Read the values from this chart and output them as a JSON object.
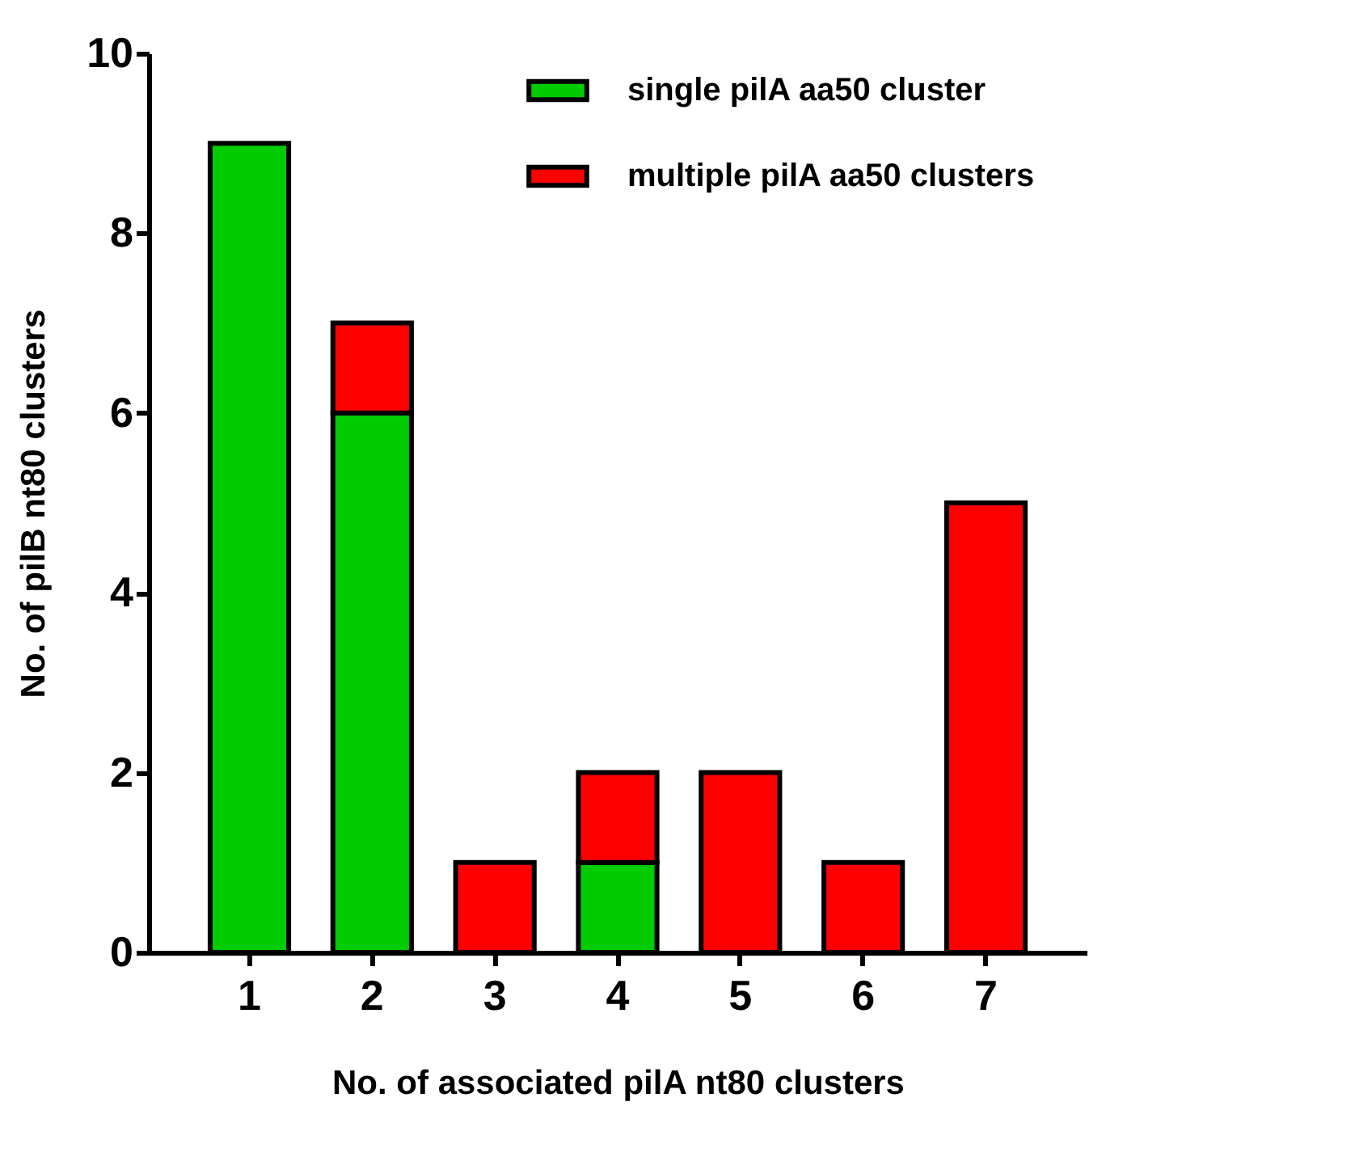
{
  "chart_data": {
    "type": "bar",
    "stacked": true,
    "xlabel": "No. of associated pilA nt80 clusters",
    "ylabel": "No. of pilB nt80 clusters",
    "categories": [
      "1",
      "2",
      "3",
      "4",
      "5",
      "6",
      "7"
    ],
    "series": [
      {
        "name": "single pilA aa50 cluster",
        "color": "#00cc00",
        "values": [
          9,
          6,
          0,
          1,
          0,
          0,
          0
        ]
      },
      {
        "name": "multiple pilA aa50 clusters",
        "color": "#ff0000",
        "values": [
          0,
          1,
          1,
          1,
          2,
          1,
          5
        ]
      }
    ],
    "ylim": [
      0,
      10
    ],
    "yticks": [
      0,
      2,
      4,
      6,
      8,
      10
    ],
    "grid": false,
    "legend": "top right"
  }
}
